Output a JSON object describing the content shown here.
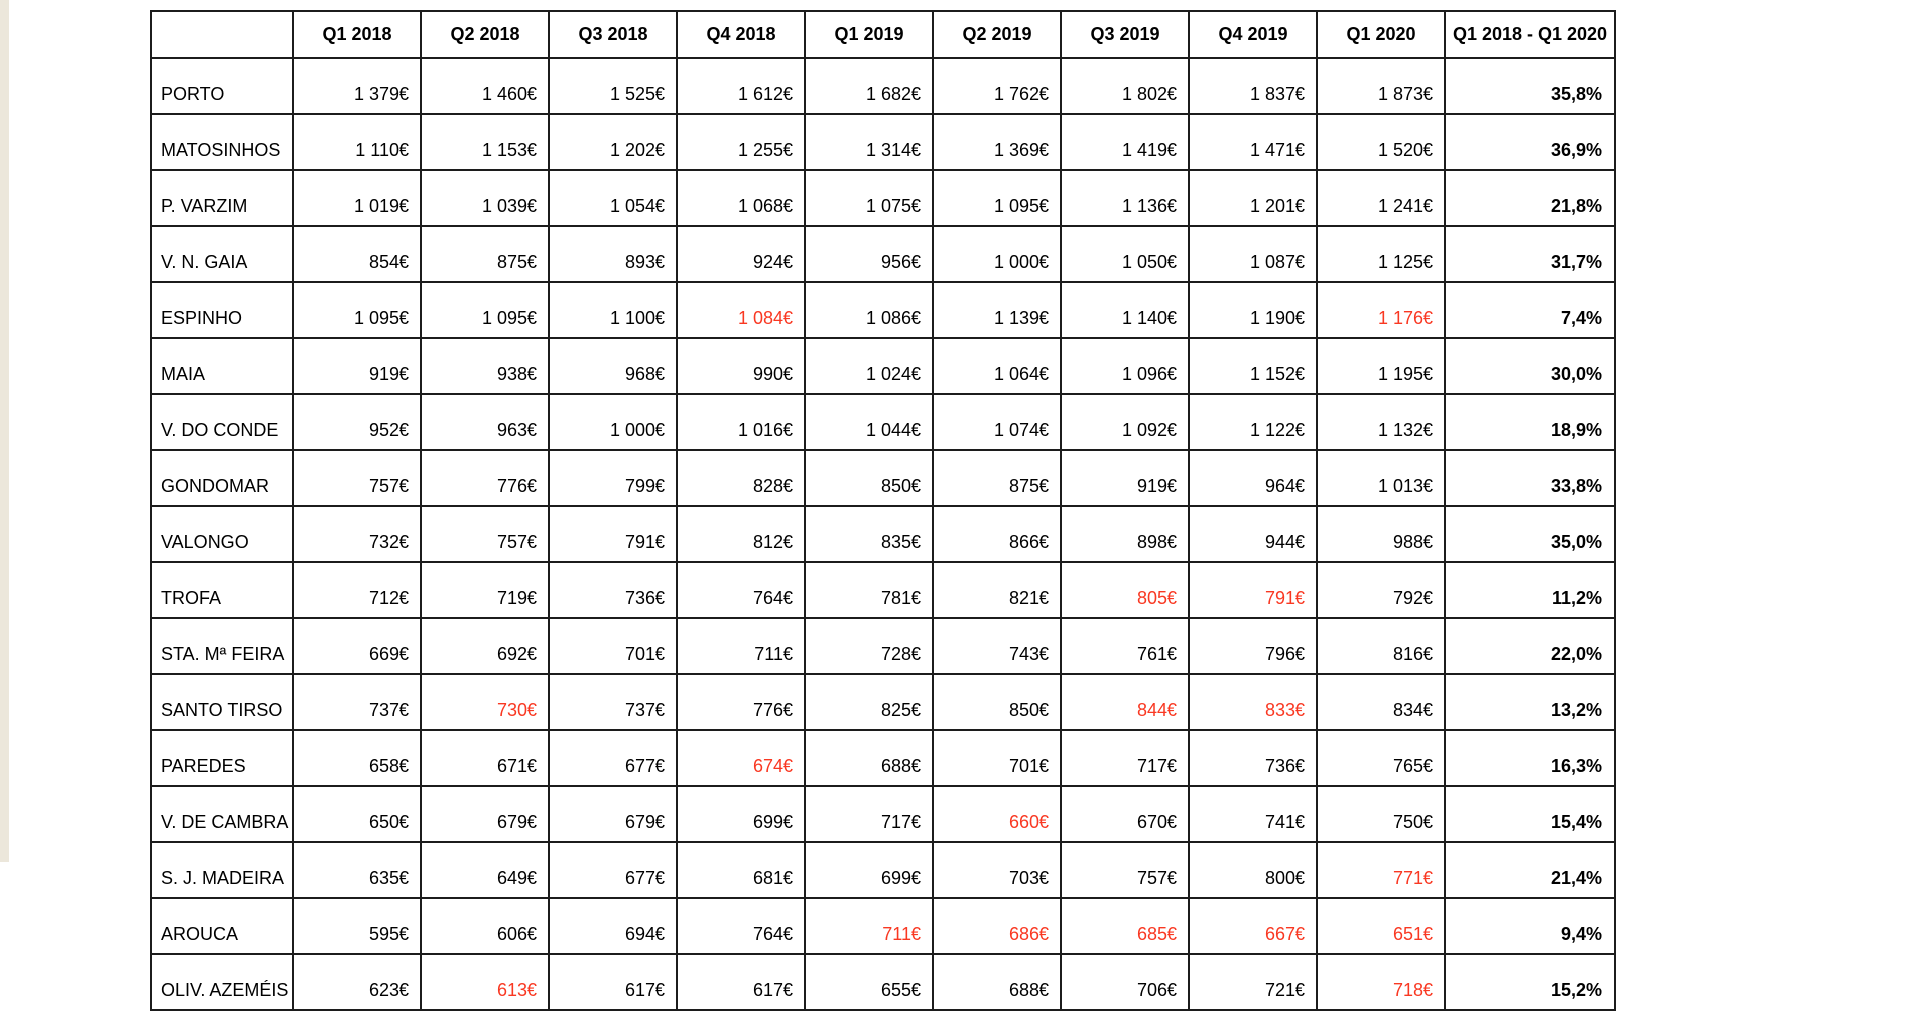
{
  "chart_data": {
    "type": "table",
    "columns": [
      "",
      "Q1 2018",
      "Q2 2018",
      "Q3 2018",
      "Q4 2018",
      "Q1 2019",
      "Q2 2019",
      "Q3 2019",
      "Q4 2019",
      "Q1 2020",
      "Q1 2018 - Q1 2020"
    ],
    "rows": [
      {
        "name": "PORTO",
        "values": [
          "1 379€",
          "1 460€",
          "1 525€",
          "1 612€",
          "1 682€",
          "1 762€",
          "1 802€",
          "1 837€",
          "1 873€"
        ],
        "red_indices": [],
        "change": "35,8%"
      },
      {
        "name": "MATOSINHOS",
        "values": [
          "1 110€",
          "1 153€",
          "1 202€",
          "1 255€",
          "1 314€",
          "1 369€",
          "1 419€",
          "1 471€",
          "1 520€"
        ],
        "red_indices": [],
        "change": "36,9%"
      },
      {
        "name": "P. VARZIM",
        "values": [
          "1 019€",
          "1 039€",
          "1 054€",
          "1 068€",
          "1 075€",
          "1 095€",
          "1 136€",
          "1 201€",
          "1 241€"
        ],
        "red_indices": [],
        "change": "21,8%"
      },
      {
        "name": "V. N. GAIA",
        "values": [
          "854€",
          "875€",
          "893€",
          "924€",
          "956€",
          "1 000€",
          "1 050€",
          "1 087€",
          "1 125€"
        ],
        "red_indices": [],
        "change": "31,7%"
      },
      {
        "name": "ESPINHO",
        "values": [
          "1 095€",
          "1 095€",
          "1 100€",
          "1 084€",
          "1 086€",
          "1 139€",
          "1 140€",
          "1 190€",
          "1 176€"
        ],
        "red_indices": [
          3,
          8
        ],
        "change": "7,4%"
      },
      {
        "name": "MAIA",
        "values": [
          "919€",
          "938€",
          "968€",
          "990€",
          "1 024€",
          "1 064€",
          "1 096€",
          "1 152€",
          "1 195€"
        ],
        "red_indices": [],
        "change": "30,0%"
      },
      {
        "name": "V. DO CONDE",
        "values": [
          "952€",
          "963€",
          "1 000€",
          "1 016€",
          "1 044€",
          "1 074€",
          "1 092€",
          "1 122€",
          "1 132€"
        ],
        "red_indices": [],
        "change": "18,9%"
      },
      {
        "name": "GONDOMAR",
        "values": [
          "757€",
          "776€",
          "799€",
          "828€",
          "850€",
          "875€",
          "919€",
          "964€",
          "1 013€"
        ],
        "red_indices": [],
        "change": "33,8%"
      },
      {
        "name": "VALONGO",
        "values": [
          "732€",
          "757€",
          "791€",
          "812€",
          "835€",
          "866€",
          "898€",
          "944€",
          "988€"
        ],
        "red_indices": [],
        "change": "35,0%"
      },
      {
        "name": "TROFA",
        "values": [
          "712€",
          "719€",
          "736€",
          "764€",
          "781€",
          "821€",
          "805€",
          "791€",
          "792€"
        ],
        "red_indices": [
          6,
          7
        ],
        "change": "11,2%"
      },
      {
        "name": "STA. Mª FEIRA",
        "values": [
          "669€",
          "692€",
          "701€",
          "711€",
          "728€",
          "743€",
          "761€",
          "796€",
          "816€"
        ],
        "red_indices": [],
        "change": "22,0%"
      },
      {
        "name": "SANTO TIRSO",
        "values": [
          "737€",
          "730€",
          "737€",
          "776€",
          "825€",
          "850€",
          "844€",
          "833€",
          "834€"
        ],
        "red_indices": [
          1,
          6,
          7
        ],
        "change": "13,2%"
      },
      {
        "name": "PAREDES",
        "values": [
          "658€",
          "671€",
          "677€",
          "674€",
          "688€",
          "701€",
          "717€",
          "736€",
          "765€"
        ],
        "red_indices": [
          3
        ],
        "change": "16,3%"
      },
      {
        "name": "V. DE CAMBRA",
        "values": [
          "650€",
          "679€",
          "679€",
          "699€",
          "717€",
          "660€",
          "670€",
          "741€",
          "750€"
        ],
        "red_indices": [
          5
        ],
        "change": "15,4%"
      },
      {
        "name": "S. J. MADEIRA",
        "values": [
          "635€",
          "649€",
          "677€",
          "681€",
          "699€",
          "703€",
          "757€",
          "800€",
          "771€"
        ],
        "red_indices": [
          8
        ],
        "change": "21,4%"
      },
      {
        "name": "AROUCA",
        "values": [
          "595€",
          "606€",
          "694€",
          "764€",
          "711€",
          "686€",
          "685€",
          "667€",
          "651€"
        ],
        "red_indices": [
          4,
          5,
          6,
          7,
          8
        ],
        "change": "9,4%"
      },
      {
        "name": "OLIV. AZEMÉIS",
        "values": [
          "623€",
          "613€",
          "617€",
          "617€",
          "655€",
          "688€",
          "706€",
          "721€",
          "718€"
        ],
        "red_indices": [
          1,
          8
        ],
        "change": "15,2%"
      }
    ]
  },
  "styles": {
    "red_value_color": "#f93822",
    "text_color": "#000000",
    "border_color": "#1c1c1c"
  }
}
